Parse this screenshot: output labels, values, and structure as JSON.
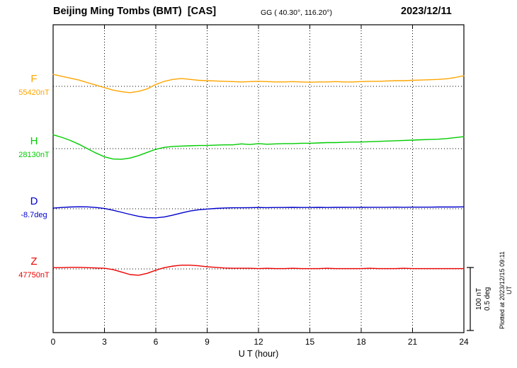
{
  "header": {
    "title": "Beijing Ming Tombs (BMT)  [CAS]",
    "coords": "GG ( 40.30°, 116.20°)",
    "date": "2023/12/11"
  },
  "scale_bar": {
    "nt": "100 nT",
    "deg": "0.5 deg"
  },
  "plotted_at": "Plotted at 2023/12/15 09:11 UT",
  "chart_data": {
    "type": "line",
    "xlabel": "U T (hour)",
    "xmin": 0,
    "xmax": 24,
    "xticks": [
      0,
      3,
      6,
      9,
      12,
      15,
      18,
      21,
      24
    ],
    "grid": "dotted vertical at each 3h, dotted horizontal baseline per trace",
    "x_step_hours": 0.5,
    "scale": {
      "nT_per_bar": 100,
      "deg_per_bar": 0.5
    },
    "series": [
      {
        "name": "F",
        "baseline_label": "55420nT",
        "unit": "nT",
        "color": "#ffa500",
        "offsets": [
          19,
          16,
          13,
          10,
          6,
          2,
          -2,
          -6,
          -8.5,
          -10,
          -8,
          -4,
          3,
          8,
          11,
          12.5,
          11,
          9.5,
          9,
          8.5,
          8,
          7.5,
          7,
          7.5,
          8,
          7.5,
          7,
          7,
          7.5,
          7,
          6.5,
          7,
          7,
          7.5,
          7,
          7,
          7.5,
          8,
          8,
          8.5,
          9,
          9,
          9.5,
          10,
          10.5,
          11,
          12,
          14,
          17
        ]
      },
      {
        "name": "H",
        "baseline_label": "28130nT",
        "unit": "nT",
        "color": "#00cc00",
        "offsets": [
          22,
          18,
          13,
          7,
          0,
          -7,
          -13,
          -16.5,
          -17,
          -15,
          -11,
          -6,
          -1,
          2,
          3.5,
          4,
          4.5,
          5,
          5,
          5.5,
          6,
          6,
          7.5,
          6.5,
          8,
          7,
          7.5,
          8,
          8,
          8.5,
          8.5,
          9,
          9.5,
          9.5,
          10,
          10.5,
          10.5,
          11,
          11.5,
          12,
          12.5,
          13,
          13.5,
          14,
          14.5,
          15,
          16,
          17.5,
          19
        ]
      },
      {
        "name": "D",
        "baseline_label": "-8.7deg",
        "unit": "deg",
        "color": "#0000cc",
        "offsets": [
          0.005,
          0.01,
          0.014,
          0.016,
          0.015,
          0.01,
          0.002,
          -0.012,
          -0.028,
          -0.045,
          -0.06,
          -0.07,
          -0.072,
          -0.065,
          -0.05,
          -0.033,
          -0.018,
          -0.008,
          -0.002,
          0.003,
          0.006,
          0.008,
          0.008,
          0.009,
          0.01,
          0.009,
          0.01,
          0.01,
          0.011,
          0.01,
          0.01,
          0.011,
          0.01,
          0.011,
          0.011,
          0.012,
          0.011,
          0.012,
          0.012,
          0.012,
          0.013,
          0.012,
          0.013,
          0.013,
          0.013,
          0.014,
          0.014,
          0.014,
          0.015
        ]
      },
      {
        "name": "Z",
        "baseline_label": "47750nT",
        "unit": "nT",
        "color": "#ee0000",
        "offsets": [
          2,
          2,
          2.5,
          2.5,
          2,
          1.5,
          1,
          -1,
          -5,
          -9,
          -10,
          -7,
          -2,
          2,
          4.5,
          6,
          6,
          5,
          3.5,
          2.5,
          1.5,
          1,
          1,
          1,
          0.5,
          1,
          0.5,
          0.5,
          1,
          0.5,
          0.5,
          0.5,
          1,
          0.5,
          0.5,
          0.5,
          0.5,
          1,
          0.5,
          0.5,
          0.5,
          1,
          0.5,
          0.5,
          0.5,
          0.5,
          0.5,
          0.5,
          0.5
        ]
      }
    ]
  }
}
